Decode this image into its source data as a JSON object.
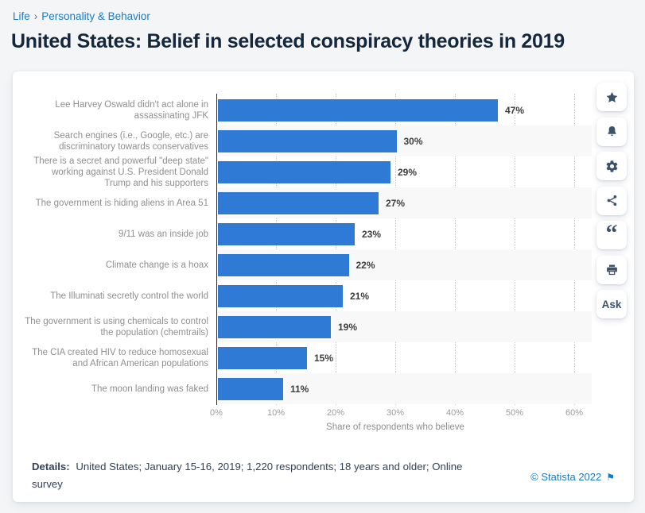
{
  "breadcrumb": {
    "items": [
      "Life",
      "Personality & Behavior"
    ],
    "separator": "›"
  },
  "page_title": "United States: Belief in selected conspiracy theories in 2019",
  "chart_data": {
    "type": "bar",
    "orientation": "horizontal",
    "title": "United States: Belief in selected conspiracy theories in 2019",
    "categories": [
      "Lee Harvey Oswald didn't act alone in assassinating JFK",
      "Search engines (i.e., Google, etc.) are discriminatory towards conservatives",
      "There is a secret and powerful \"deep state\" working against U.S. President Donald Trump and his supporters",
      "The government is hiding aliens in Area 51",
      "9/11 was an inside job",
      "Climate change is a hoax",
      "The Illuminati secretly control the world",
      "The government is using chemicals to control the population (chemtrails)",
      "The CIA created HIV to reduce homosexual and African American populations",
      "The moon landing was faked"
    ],
    "values": [
      47,
      30,
      29,
      27,
      23,
      22,
      21,
      19,
      15,
      11
    ],
    "value_labels": [
      "47%",
      "30%",
      "29%",
      "27%",
      "23%",
      "22%",
      "21%",
      "19%",
      "15%",
      "11%"
    ],
    "xlabel": "Share of respondents who believe",
    "x_ticks": [
      "0%",
      "10%",
      "20%",
      "30%",
      "40%",
      "50%",
      "60%"
    ],
    "xlim": [
      0,
      60
    ],
    "bar_color": "#2f7ad5",
    "grid": "vertical-dotted",
    "legend": "none"
  },
  "toolbar": {
    "buttons": [
      {
        "name": "favorite",
        "icon": "star-icon"
      },
      {
        "name": "alert",
        "icon": "bell-icon"
      },
      {
        "name": "settings",
        "icon": "gear-icon"
      },
      {
        "name": "share",
        "icon": "share-icon"
      },
      {
        "name": "cite",
        "icon": "quote-icon"
      },
      {
        "name": "print",
        "icon": "printer-icon"
      },
      {
        "name": "ask",
        "icon": "",
        "label": "Ask"
      }
    ]
  },
  "footer": {
    "details_label": "Details:",
    "details_text": "United States; January 15-16, 2019; 1,220 respondents; 18 years and older; Online survey",
    "copyright": "© Statista 2022"
  }
}
